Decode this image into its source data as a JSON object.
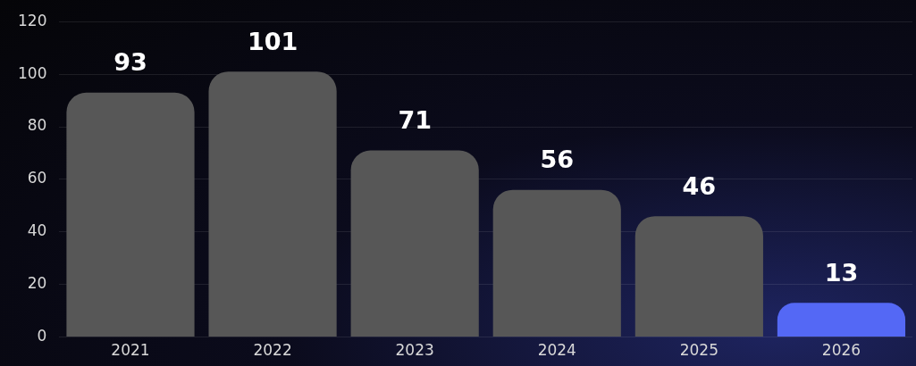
{
  "chart_data": {
    "type": "bar",
    "categories": [
      "2021",
      "2022",
      "2023",
      "2024",
      "2025",
      "2026"
    ],
    "values": [
      93,
      101,
      71,
      56,
      46,
      13
    ],
    "colors": [
      "#575757",
      "#575757",
      "#575757",
      "#575757",
      "#575757",
      "#5468f5"
    ],
    "ylim": [
      0,
      120
    ],
    "yticks": [
      0,
      20,
      40,
      60,
      80,
      100,
      120
    ],
    "grid": "y",
    "data_labels": true,
    "legend": false
  }
}
